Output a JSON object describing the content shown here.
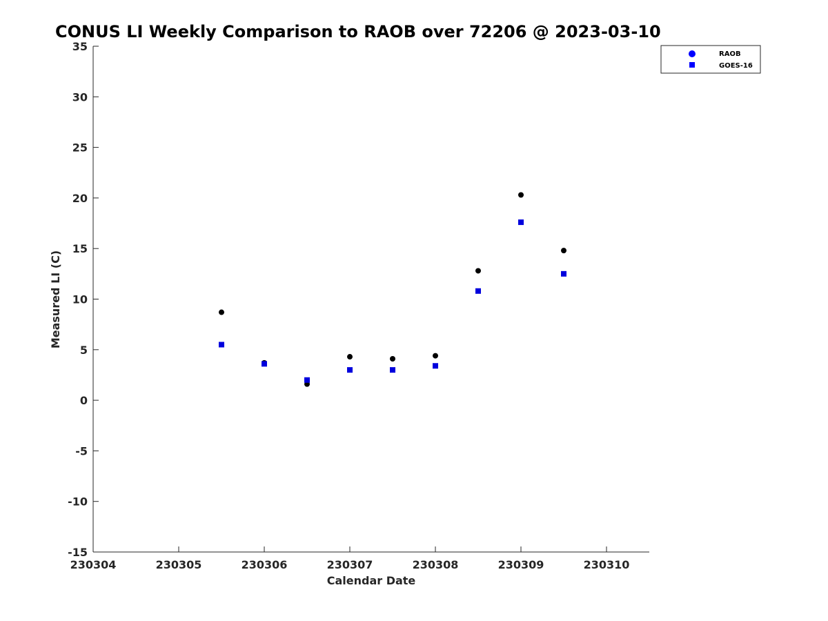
{
  "chart_data": {
    "type": "scatter",
    "title": "CONUS LI Weekly Comparison to RAOB over 72206 @ 2023-03-10",
    "xlabel": "Calendar Date",
    "ylabel": "Measured LI (C)",
    "xlim": [
      230304,
      230310.5
    ],
    "ylim": [
      -15,
      35
    ],
    "xticks": [
      230304,
      230305,
      230306,
      230307,
      230308,
      230309,
      230310
    ],
    "xtick_labels": [
      "230304",
      "230305",
      "230306",
      "230307",
      "230308",
      "230309",
      "230310"
    ],
    "yticks": [
      -15,
      -10,
      -5,
      0,
      5,
      10,
      15,
      20,
      25,
      30,
      35
    ],
    "ytick_labels": [
      "-15",
      "-10",
      "-5",
      "0",
      "5",
      "10",
      "15",
      "20",
      "25",
      "30",
      "35"
    ],
    "grid": false,
    "legend_position": "top-right",
    "series": [
      {
        "name": "RAOB",
        "marker": "circle",
        "color": "#000000",
        "legend_color": "#0000ff",
        "x": [
          230305.5,
          230306,
          230306.5,
          230307,
          230307.5,
          230308,
          230308.5,
          230309,
          230309.5
        ],
        "y": [
          8.7,
          3.7,
          1.6,
          4.3,
          4.1,
          4.4,
          12.8,
          20.3,
          14.8
        ]
      },
      {
        "name": "GOES-16",
        "marker": "square",
        "color": "#0000dd",
        "legend_color": "#0000ff",
        "x": [
          230305.5,
          230306,
          230306.5,
          230307,
          230307.5,
          230308,
          230308.5,
          230309,
          230309.5
        ],
        "y": [
          5.5,
          3.6,
          2.0,
          3.0,
          3.0,
          3.4,
          10.8,
          17.6,
          12.5
        ]
      }
    ]
  }
}
